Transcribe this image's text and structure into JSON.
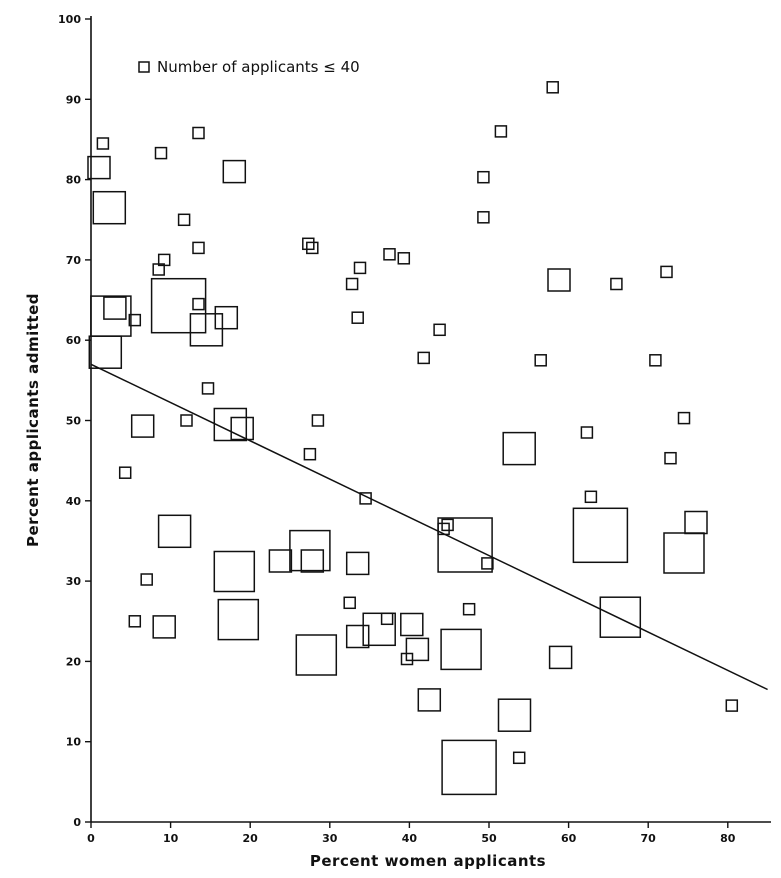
{
  "chart_data": {
    "type": "scatter",
    "title": "",
    "xlabel": "Percent women applicants",
    "ylabel": "Percent applicants admitted",
    "xlim": [
      0,
      85
    ],
    "ylim": [
      0,
      100
    ],
    "x_ticks": [
      0,
      10,
      20,
      30,
      40,
      50,
      60,
      70,
      80
    ],
    "y_ticks": [
      0,
      10,
      20,
      30,
      40,
      50,
      60,
      70,
      80,
      90,
      100
    ],
    "grid": false,
    "legend": {
      "position": "top-left",
      "label": "Number of applicants ≤ 40",
      "marker": "small square"
    },
    "marker_shape": "square",
    "marker_size_encodes": "number of applicants",
    "trend_line": {
      "x": [
        0,
        85
      ],
      "y": [
        57,
        16.5
      ]
    },
    "points": [
      {
        "x": 1.5,
        "y": 84.5,
        "size": "small"
      },
      {
        "x": 1,
        "y": 81.5,
        "size": "medium"
      },
      {
        "x": 2.3,
        "y": 76.5,
        "size": "large"
      },
      {
        "x": 2.5,
        "y": 63,
        "size": "xlarge"
      },
      {
        "x": 3,
        "y": 64,
        "size": "medium"
      },
      {
        "x": 5.5,
        "y": 62.5,
        "size": "small"
      },
      {
        "x": 1.8,
        "y": 58.5,
        "size": "large"
      },
      {
        "x": 4.3,
        "y": 43.5,
        "size": "small"
      },
      {
        "x": 6.5,
        "y": 49.3,
        "size": "medium"
      },
      {
        "x": 5.5,
        "y": 25,
        "size": "small"
      },
      {
        "x": 7,
        "y": 30.2,
        "size": "small"
      },
      {
        "x": 8.8,
        "y": 83.3,
        "size": "small"
      },
      {
        "x": 8.5,
        "y": 68.8,
        "size": "small"
      },
      {
        "x": 9.2,
        "y": 70,
        "size": "small"
      },
      {
        "x": 11,
        "y": 64.3,
        "size": "xxlarge"
      },
      {
        "x": 11.7,
        "y": 75,
        "size": "small"
      },
      {
        "x": 12,
        "y": 50,
        "size": "small"
      },
      {
        "x": 10.5,
        "y": 36.2,
        "size": "large"
      },
      {
        "x": 9.2,
        "y": 24.3,
        "size": "medium"
      },
      {
        "x": 13.5,
        "y": 85.8,
        "size": "small"
      },
      {
        "x": 13.5,
        "y": 71.5,
        "size": "small"
      },
      {
        "x": 13.5,
        "y": 64.5,
        "size": "small"
      },
      {
        "x": 14.5,
        "y": 61.3,
        "size": "large"
      },
      {
        "x": 14.7,
        "y": 54,
        "size": "small"
      },
      {
        "x": 17,
        "y": 62.8,
        "size": "medium"
      },
      {
        "x": 18,
        "y": 81,
        "size": "medium"
      },
      {
        "x": 17.5,
        "y": 49.5,
        "size": "large"
      },
      {
        "x": 19,
        "y": 49,
        "size": "medium"
      },
      {
        "x": 18,
        "y": 31.2,
        "size": "xlarge"
      },
      {
        "x": 18.5,
        "y": 25.2,
        "size": "xlarge"
      },
      {
        "x": 23.8,
        "y": 32.5,
        "size": "medium"
      },
      {
        "x": 27.3,
        "y": 72,
        "size": "small"
      },
      {
        "x": 27.8,
        "y": 71.5,
        "size": "small"
      },
      {
        "x": 27.5,
        "y": 45.8,
        "size": "small"
      },
      {
        "x": 28.5,
        "y": 50,
        "size": "small"
      },
      {
        "x": 27.5,
        "y": 33.8,
        "size": "xlarge"
      },
      {
        "x": 27.8,
        "y": 32.5,
        "size": "medium"
      },
      {
        "x": 28.3,
        "y": 20.8,
        "size": "xlarge"
      },
      {
        "x": 32.5,
        "y": 27.3,
        "size": "small"
      },
      {
        "x": 32.8,
        "y": 67,
        "size": "small"
      },
      {
        "x": 33.5,
        "y": 62.8,
        "size": "small"
      },
      {
        "x": 33.8,
        "y": 69,
        "size": "small"
      },
      {
        "x": 34.5,
        "y": 40.3,
        "size": "small"
      },
      {
        "x": 33.5,
        "y": 32.2,
        "size": "medium"
      },
      {
        "x": 33.5,
        "y": 23.1,
        "size": "medium"
      },
      {
        "x": 36.2,
        "y": 24,
        "size": "large"
      },
      {
        "x": 37.2,
        "y": 25.3,
        "size": "small"
      },
      {
        "x": 37.5,
        "y": 70.7,
        "size": "small"
      },
      {
        "x": 39.3,
        "y": 70.2,
        "size": "small"
      },
      {
        "x": 39.7,
        "y": 20.3,
        "size": "small"
      },
      {
        "x": 40.3,
        "y": 24.6,
        "size": "medium"
      },
      {
        "x": 41,
        "y": 21.5,
        "size": "medium"
      },
      {
        "x": 41.8,
        "y": 57.8,
        "size": "small"
      },
      {
        "x": 42.5,
        "y": 15.2,
        "size": "medium"
      },
      {
        "x": 43.8,
        "y": 61.3,
        "size": "small"
      },
      {
        "x": 44.3,
        "y": 36.5,
        "size": "small"
      },
      {
        "x": 44.8,
        "y": 37,
        "size": "small"
      },
      {
        "x": 47,
        "y": 34.5,
        "size": "xxlarge"
      },
      {
        "x": 46.5,
        "y": 21.5,
        "size": "xlarge"
      },
      {
        "x": 47.5,
        "y": 26.5,
        "size": "small"
      },
      {
        "x": 47.5,
        "y": 6.8,
        "size": "xxlarge"
      },
      {
        "x": 49.3,
        "y": 80.3,
        "size": "small"
      },
      {
        "x": 49.3,
        "y": 75.3,
        "size": "small"
      },
      {
        "x": 49.8,
        "y": 32.2,
        "size": "small"
      },
      {
        "x": 51.5,
        "y": 86,
        "size": "small"
      },
      {
        "x": 53.8,
        "y": 46.5,
        "size": "large"
      },
      {
        "x": 53.2,
        "y": 13.3,
        "size": "large"
      },
      {
        "x": 53.8,
        "y": 8,
        "size": "small"
      },
      {
        "x": 56.5,
        "y": 57.5,
        "size": "small"
      },
      {
        "x": 58,
        "y": 91.5,
        "size": "small"
      },
      {
        "x": 58.8,
        "y": 67.5,
        "size": "medium"
      },
      {
        "x": 59,
        "y": 20.5,
        "size": "medium"
      },
      {
        "x": 62.3,
        "y": 48.5,
        "size": "small"
      },
      {
        "x": 62.8,
        "y": 40.5,
        "size": "small"
      },
      {
        "x": 64,
        "y": 35.7,
        "size": "xxlarge"
      },
      {
        "x": 66,
        "y": 67,
        "size": "small"
      },
      {
        "x": 66.5,
        "y": 25.5,
        "size": "xlarge"
      },
      {
        "x": 70.9,
        "y": 57.5,
        "size": "small"
      },
      {
        "x": 72.3,
        "y": 68.5,
        "size": "small"
      },
      {
        "x": 72.8,
        "y": 45.3,
        "size": "small"
      },
      {
        "x": 74.5,
        "y": 50.3,
        "size": "small"
      },
      {
        "x": 74.5,
        "y": 33.5,
        "size": "xlarge"
      },
      {
        "x": 76,
        "y": 37.3,
        "size": "medium"
      },
      {
        "x": 80.5,
        "y": 14.5,
        "size": "small"
      }
    ]
  }
}
